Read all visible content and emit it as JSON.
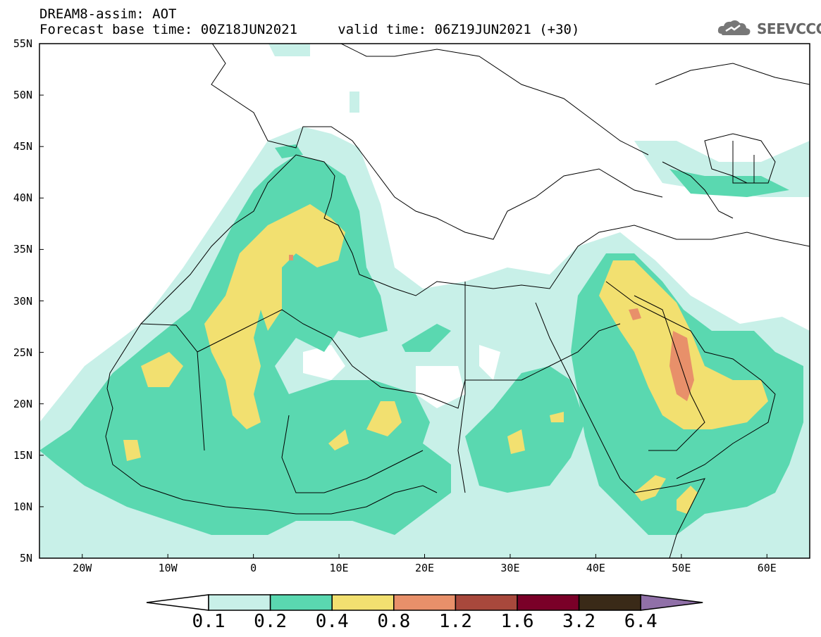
{
  "header": {
    "title_line1": "DREAM8-assim: AOT",
    "title_line2": "Forecast base time: 00Z18JUN2021     valid time: 06Z19JUN2021 (+30)",
    "logo_text": "SEEVCCC"
  },
  "map": {
    "variable": "AOT",
    "lat_range": [
      5,
      55
    ],
    "lon_range": [
      -25,
      65
    ],
    "lat_labels": [
      {
        "lat": 55,
        "text": "55N"
      },
      {
        "lat": 50,
        "text": "50N"
      },
      {
        "lat": 45,
        "text": "45N"
      },
      {
        "lat": 40,
        "text": "40N"
      },
      {
        "lat": 35,
        "text": "35N"
      },
      {
        "lat": 30,
        "text": "30N"
      },
      {
        "lat": 25,
        "text": "25N"
      },
      {
        "lat": 20,
        "text": "20N"
      },
      {
        "lat": 15,
        "text": "15N"
      },
      {
        "lat": 10,
        "text": "10N"
      },
      {
        "lat": 5,
        "text": "5N"
      }
    ],
    "lon_labels": [
      {
        "lon": -20,
        "text": "20W"
      },
      {
        "lon": -10,
        "text": "10W"
      },
      {
        "lon": 0,
        "text": "0"
      },
      {
        "lon": 10,
        "text": "10E"
      },
      {
        "lon": 20,
        "text": "20E"
      },
      {
        "lon": 30,
        "text": "30E"
      },
      {
        "lon": 40,
        "text": "40E"
      },
      {
        "lon": 50,
        "text": "50E"
      },
      {
        "lon": 60,
        "text": "60E"
      }
    ]
  },
  "colorbar": {
    "colors": [
      "#ffffff",
      "#c8f0e8",
      "#5ad8b0",
      "#f2e070",
      "#e8906a",
      "#a8483c",
      "#7a0028",
      "#3a2a18",
      "#9070a8"
    ],
    "levels": [
      "0.1",
      "0.2",
      "0.4",
      "0.8",
      "1.2",
      "1.6",
      "3.2",
      "6.4"
    ]
  }
}
